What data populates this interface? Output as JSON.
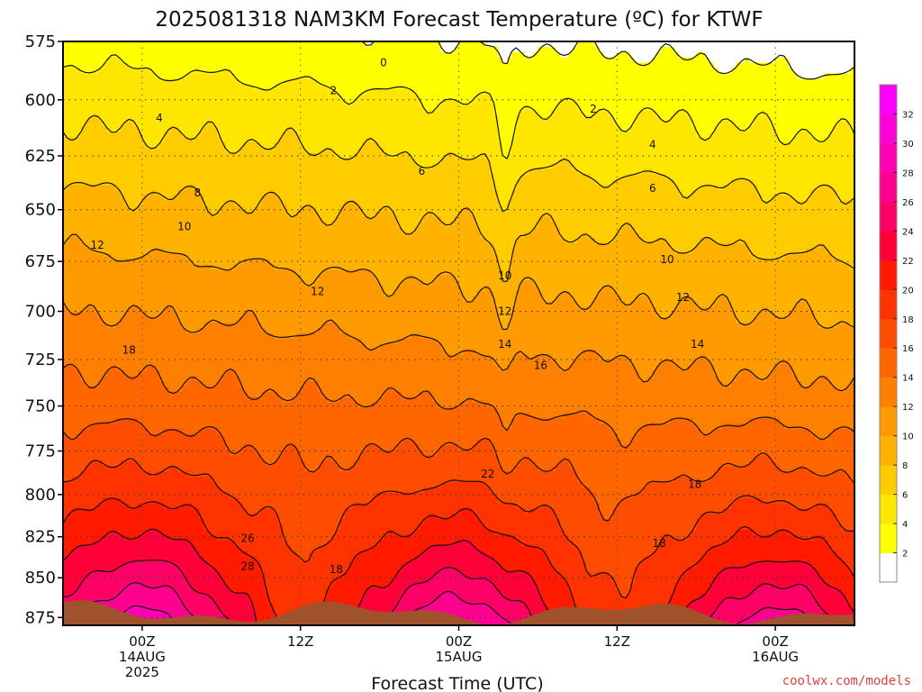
{
  "title": "2025081318 NAM3KM Forecast Temperature (ºC) for KTWF",
  "credit": "coolwx.com/models",
  "chart_data": {
    "type": "heatmap",
    "title": "2025081318 NAM3KM Forecast Temperature (ºC) for KTWF",
    "xlabel": "Forecast Time (UTC)",
    "ylabel": "",
    "y_scale": "log",
    "y_inverted": true,
    "xlim_hours": [
      -6,
      54
    ],
    "ylim": [
      575,
      880
    ],
    "y_ticks": [
      575,
      600,
      625,
      650,
      675,
      700,
      725,
      750,
      775,
      800,
      825,
      850,
      875
    ],
    "x_ticks": [
      {
        "hours": 0,
        "lines": [
          "00Z",
          "14AUG",
          "2025"
        ]
      },
      {
        "hours": 12,
        "lines": [
          "12Z"
        ]
      },
      {
        "hours": 24,
        "lines": [
          "00Z",
          "15AUG"
        ]
      },
      {
        "hours": 36,
        "lines": [
          "12Z"
        ]
      },
      {
        "hours": 48,
        "lines": [
          "00Z",
          "16AUG"
        ]
      }
    ],
    "grid": true,
    "colorbar": {
      "levels": [
        0,
        2,
        4,
        6,
        8,
        10,
        12,
        14,
        16,
        18,
        20,
        22,
        24,
        26,
        28,
        30,
        32
      ],
      "tick_labels": [
        "2",
        "4",
        "6",
        "8",
        "10",
        "12",
        "14",
        "16",
        "18",
        "20",
        "22",
        "24",
        "26",
        "28",
        "30",
        "32"
      ],
      "colors": [
        "#ffffff",
        "#ffff00",
        "#ffe600",
        "#ffcc00",
        "#ffb300",
        "#ff9a00",
        "#ff8000",
        "#ff6600",
        "#ff4d00",
        "#ff3300",
        "#ff1a00",
        "#ff0038",
        "#ff0066",
        "#ff0090",
        "#ff00b4",
        "#ff00d8",
        "#ff00ff"
      ]
    },
    "ground_color": "#a0522d",
    "contour_labels": [
      {
        "t": 18.3,
        "p": 584,
        "text": "0"
      },
      {
        "t": 14.5,
        "p": 596,
        "text": "2"
      },
      {
        "t": 34.2,
        "p": 604,
        "text": "2"
      },
      {
        "t": 1.3,
        "p": 608,
        "text": "4"
      },
      {
        "t": 38.7,
        "p": 620,
        "text": "4"
      },
      {
        "t": 21.2,
        "p": 632,
        "text": "6"
      },
      {
        "t": 38.7,
        "p": 640,
        "text": "6"
      },
      {
        "t": 4.2,
        "p": 642,
        "text": "8"
      },
      {
        "t": 3.2,
        "p": 658,
        "text": "10"
      },
      {
        "t": 39.8,
        "p": 674,
        "text": "10"
      },
      {
        "t": 27.5,
        "p": 682,
        "text": "10"
      },
      {
        "t": -3.4,
        "p": 667,
        "text": "12"
      },
      {
        "t": 13.3,
        "p": 690,
        "text": "12"
      },
      {
        "t": 27.5,
        "p": 700,
        "text": "12"
      },
      {
        "t": 41.0,
        "p": 693,
        "text": "12"
      },
      {
        "t": 27.5,
        "p": 717,
        "text": "14"
      },
      {
        "t": 42.1,
        "p": 717,
        "text": "14"
      },
      {
        "t": 30.2,
        "p": 728,
        "text": "16"
      },
      {
        "t": -1.0,
        "p": 720,
        "text": "18"
      },
      {
        "t": 41.9,
        "p": 794,
        "text": "18"
      },
      {
        "t": 39.2,
        "p": 829,
        "text": "18"
      },
      {
        "t": 14.7,
        "p": 845,
        "text": "18"
      },
      {
        "t": 26.2,
        "p": 788,
        "text": "22"
      },
      {
        "t": 8.0,
        "p": 826,
        "text": "26"
      },
      {
        "t": 8.0,
        "p": 843,
        "text": "28"
      }
    ]
  }
}
